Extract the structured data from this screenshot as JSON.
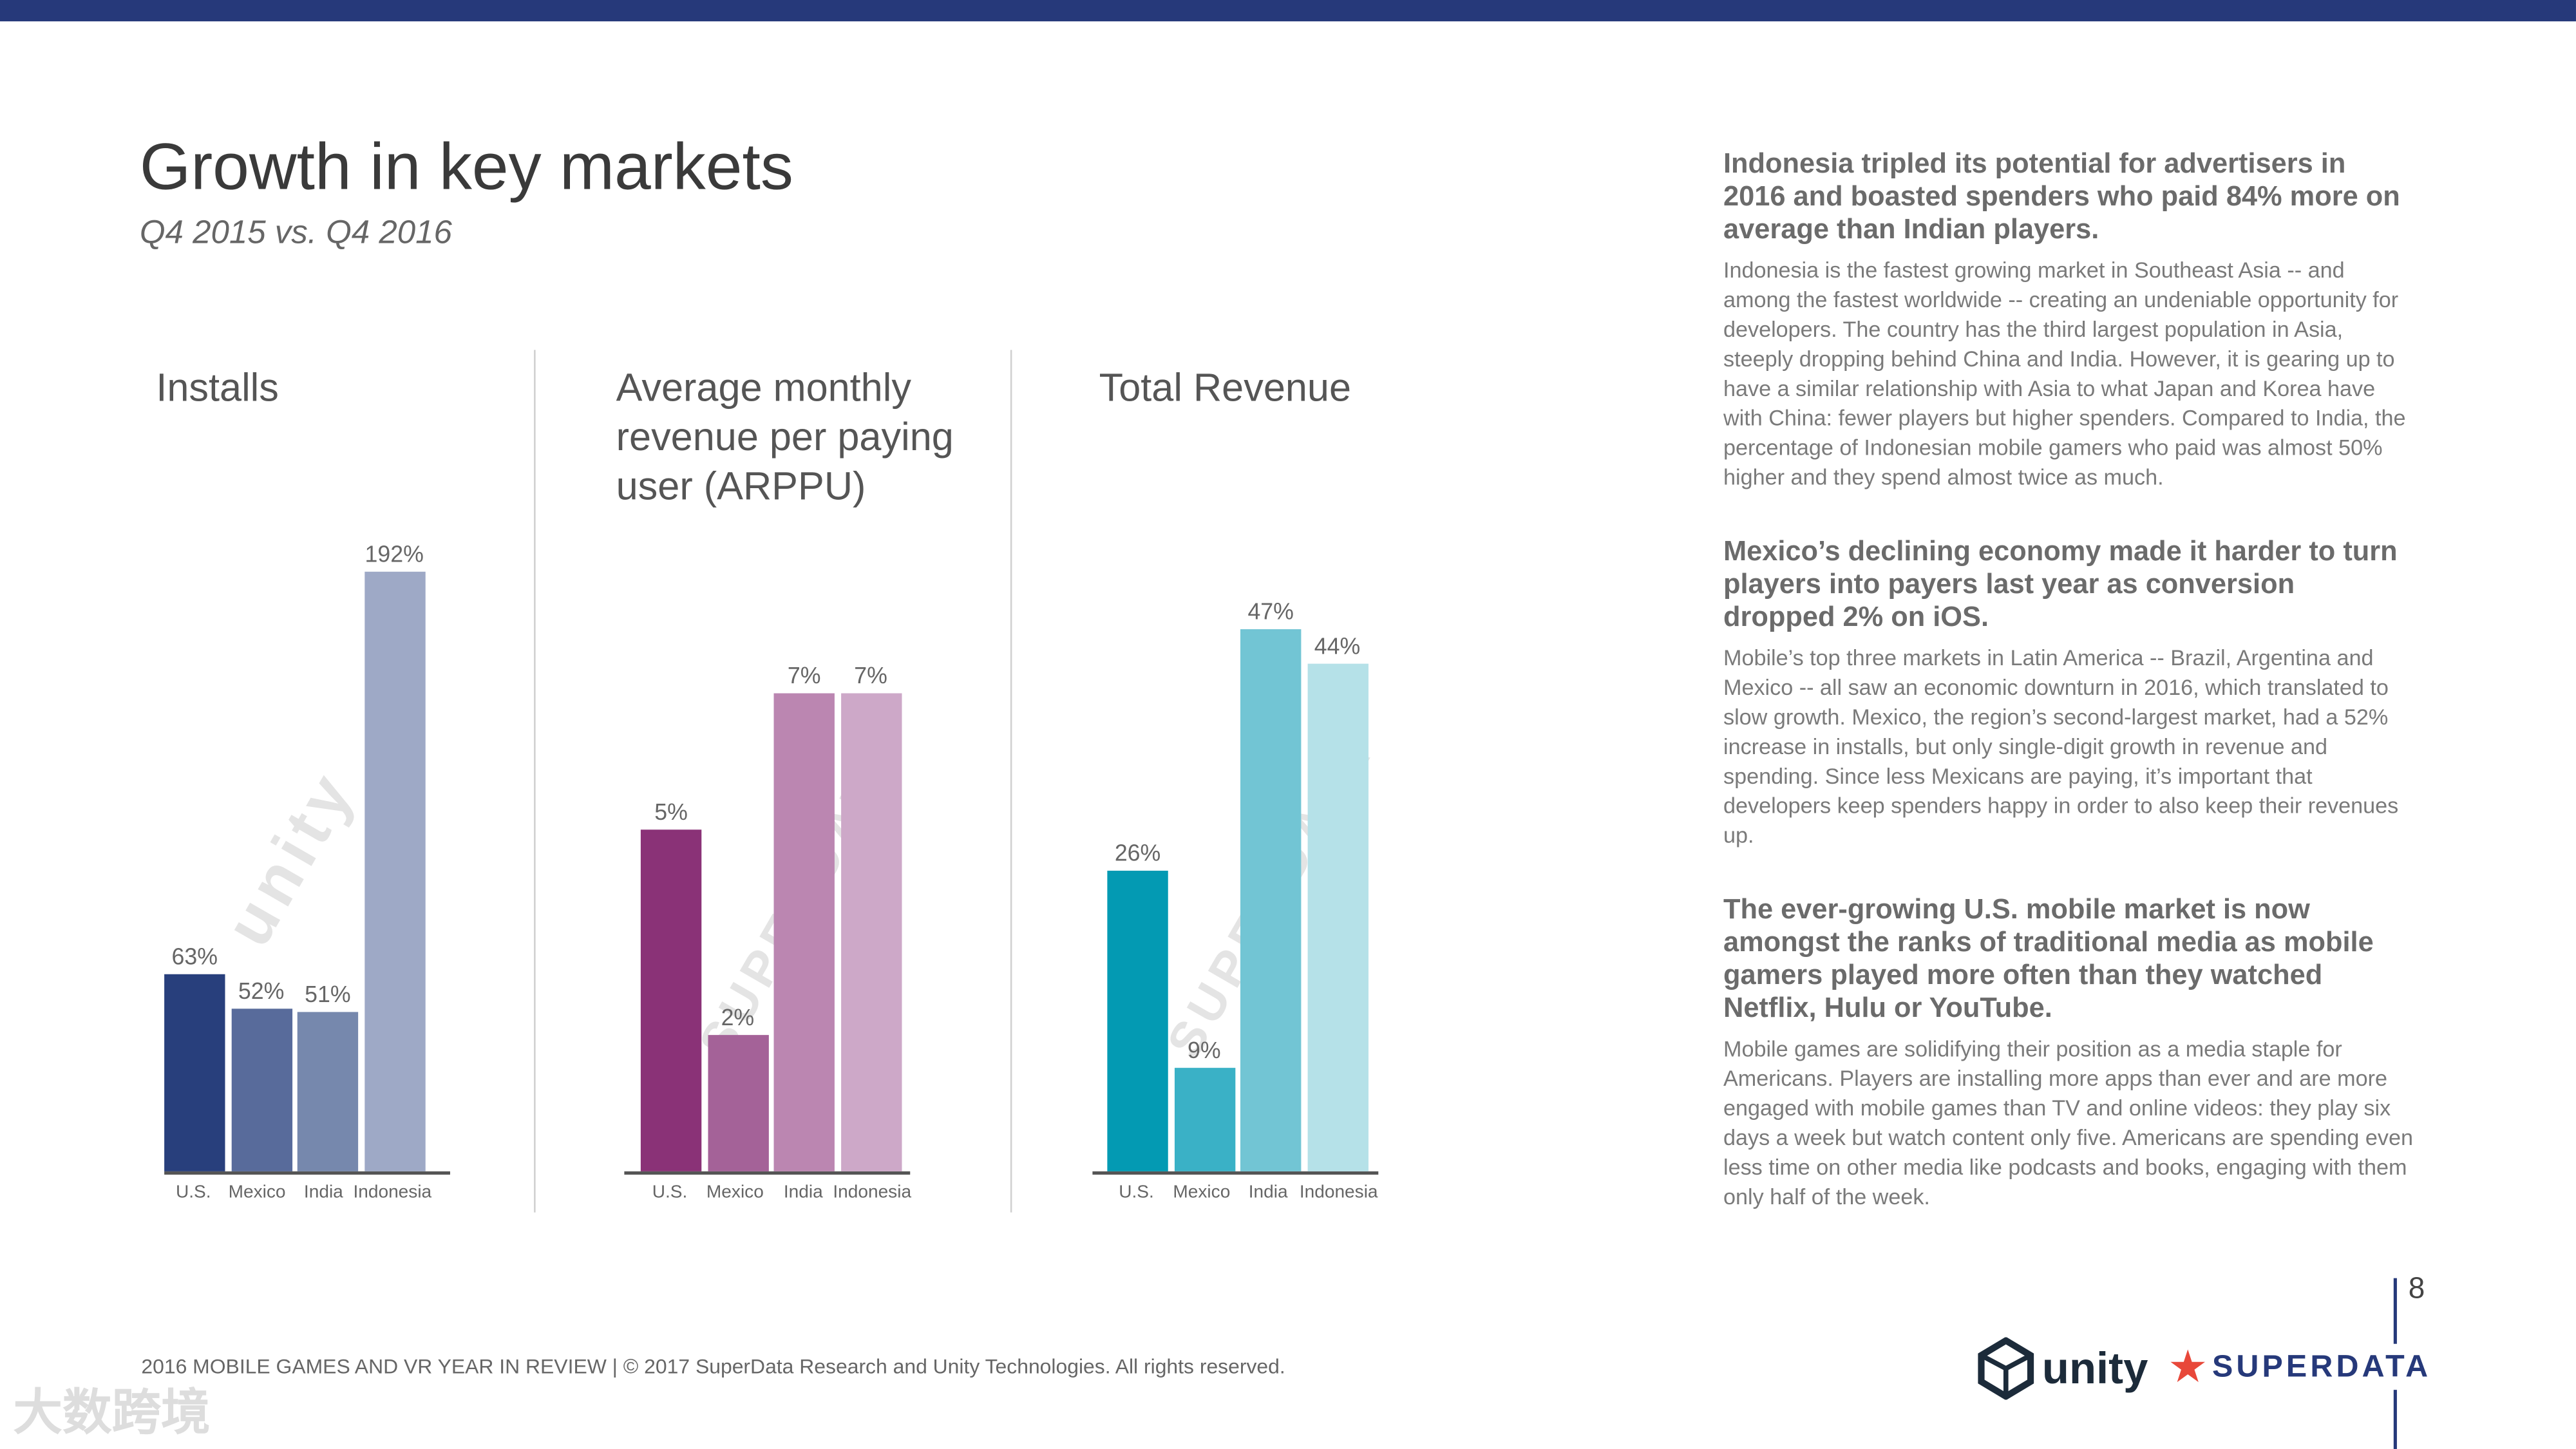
{
  "header": {
    "title": "Growth in key markets",
    "subtitle": "Q4 2015 vs. Q4 2016"
  },
  "colors": {
    "topbar": "#26397a"
  },
  "chart_data": [
    {
      "type": "bar",
      "title": "Installs",
      "categories": [
        "U.S.",
        "Mexico",
        "India",
        "Indonesia"
      ],
      "values": [
        63,
        52,
        51,
        192
      ],
      "labels": [
        "63%",
        "52%",
        "51%",
        "192%"
      ],
      "colors": [
        "#283f7c",
        "#586b9b",
        "#7688ad",
        "#9ea9c6"
      ],
      "ylabel": "",
      "xlabel": ""
    },
    {
      "type": "bar",
      "title": "Average monthly revenue per paying user (ARPPU)",
      "categories": [
        "U.S.",
        "Mexico",
        "India",
        "Indonesia"
      ],
      "values": [
        5,
        2,
        7,
        7
      ],
      "labels": [
        "5%",
        "2%",
        "7%",
        "7%"
      ],
      "colors": [
        "#8a3277",
        "#a46298",
        "#bb86b1",
        "#cda8c8"
      ],
      "ylabel": "",
      "xlabel": ""
    },
    {
      "type": "bar",
      "title": "Total Revenue",
      "categories": [
        "U.S.",
        "Mexico",
        "India",
        "Indonesia"
      ],
      "values": [
        26,
        9,
        47,
        44
      ],
      "labels": [
        "26%",
        "9%",
        "47%",
        "44%"
      ],
      "colors": [
        "#039ab3",
        "#3ab1c6",
        "#72c5d4",
        "#b5e1e8"
      ],
      "ylabel": "",
      "xlabel": ""
    }
  ],
  "sections": [
    {
      "heading": "Indonesia tripled its potential for advertisers in 2016 and boasted spenders who paid 84% more on average than Indian players.",
      "body": "Indonesia is the fastest growing market in Southeast Asia -- and among the fastest worldwide -- creating an undeniable opportunity for developers. The country has the third largest population in Asia, steeply dropping behind China and India. However, it is gearing up to have a similar relationship with Asia to what Japan and Korea have with China: fewer players but higher spenders. Compared to India, the percentage of Indonesian mobile gamers who paid was almost 50% higher and they spend almost twice as much."
    },
    {
      "heading": "Mexico’s declining economy made it harder to turn players into payers last year as conversion dropped 2% on iOS.",
      "body": "Mobile’s top three markets in Latin America -- Brazil, Argentina and Mexico -- all saw an economic downturn in 2016, which translated to slow growth. Mexico, the region’s second-largest market, had a 52% increase in installs, but only single-digit growth in revenue and spending. Since less Mexicans are paying, it’s important that developers keep spenders happy in order to also keep their revenues up."
    },
    {
      "heading": "The ever-growing U.S. mobile market is now amongst the ranks of traditional media as mobile gamers played more often than they watched Netflix, Hulu or YouTube.",
      "body": "Mobile games are solidifying their position as a media staple for Americans. Players are installing more apps than ever and are more engaged with mobile games than TV and online videos: they play six days a week but watch content only five. Americans are spending even less time on other media like podcasts and books, engaging with them only half of the week."
    }
  ],
  "footer": {
    "text": "2016 MOBILE GAMES AND VR YEAR IN REVIEW  |  © 2017 SuperData Research and Unity Technologies. All rights reserved.",
    "page": "8"
  },
  "logos": {
    "unity": "unity",
    "superdata": "SUPERDATA"
  },
  "watermarks": {
    "corner": "大数跨境",
    "chart1": "unity",
    "chart2": "SUPERDATA",
    "chart3": "SUPERDATA"
  }
}
